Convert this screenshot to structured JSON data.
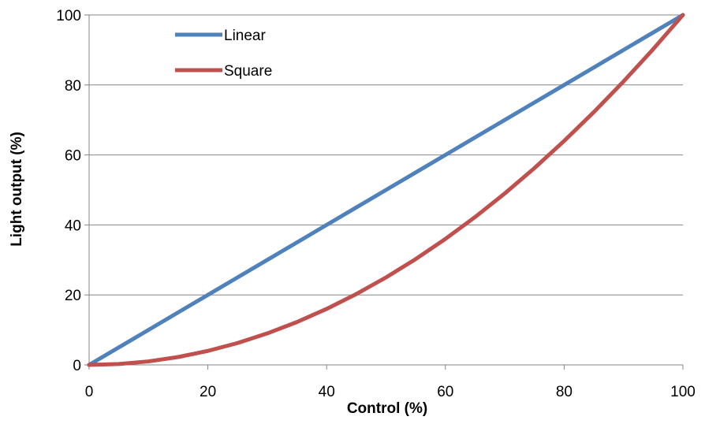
{
  "chart_data": {
    "type": "line",
    "title": "",
    "xlabel": "Control (%)",
    "ylabel": "Light output (%)",
    "xlim": [
      0,
      100
    ],
    "ylim": [
      0,
      100
    ],
    "x_ticks": [
      0,
      20,
      40,
      60,
      80,
      100
    ],
    "y_ticks": [
      0,
      20,
      40,
      60,
      80,
      100
    ],
    "x_tick_labels": [
      "0",
      "20",
      "40",
      "60",
      "80",
      "100"
    ],
    "y_tick_labels": [
      "0",
      "20",
      "40",
      "60",
      "80",
      "100"
    ],
    "grid": "horizontal",
    "legend_position": "top-left",
    "x": [
      0,
      5,
      10,
      15,
      20,
      25,
      30,
      35,
      40,
      45,
      50,
      55,
      60,
      65,
      70,
      75,
      80,
      85,
      90,
      95,
      100
    ],
    "series": [
      {
        "name": "Linear",
        "color": "#4F81BD",
        "values": [
          0,
          5,
          10,
          15,
          20,
          25,
          30,
          35,
          40,
          45,
          50,
          55,
          60,
          65,
          70,
          75,
          80,
          85,
          90,
          95,
          100
        ]
      },
      {
        "name": "Square",
        "color": "#C0504D",
        "values": [
          0,
          0.25,
          1,
          2.25,
          4,
          6.25,
          9,
          12.25,
          16,
          20.25,
          25,
          30.25,
          36,
          42.25,
          49,
          56.25,
          64,
          72.25,
          81,
          90.25,
          100
        ]
      }
    ]
  }
}
